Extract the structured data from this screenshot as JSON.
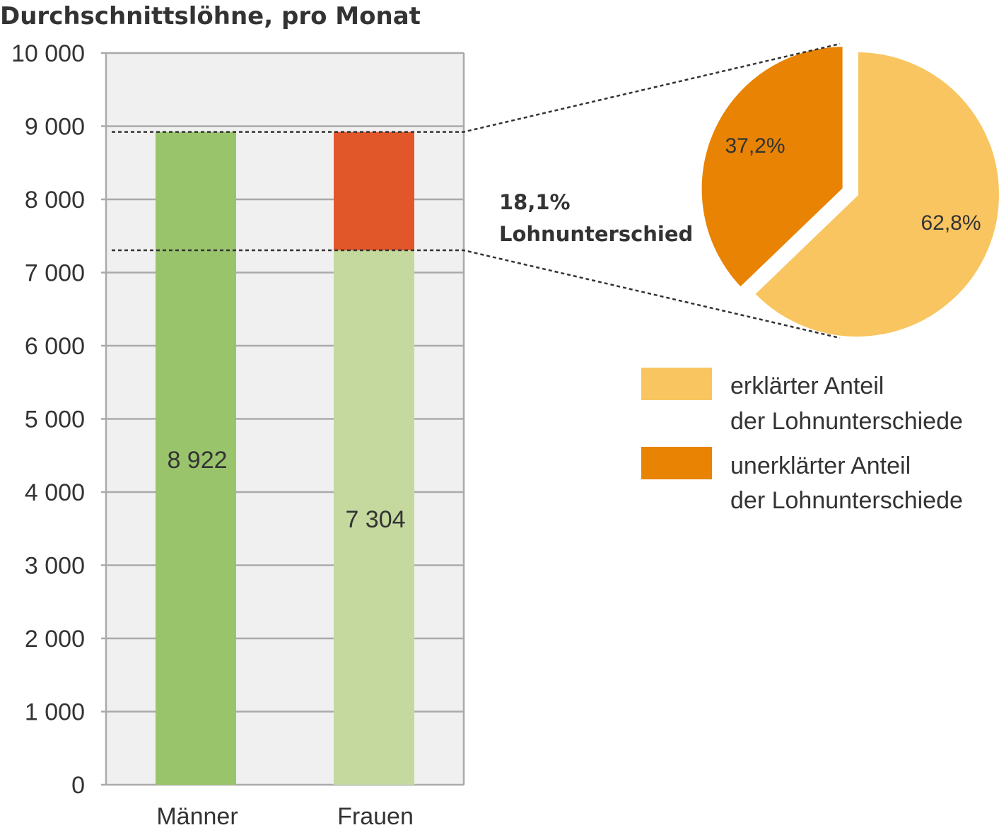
{
  "chart_data": [
    {
      "type": "bar",
      "title": "Durchschnittslöhne, pro Monat",
      "categories": [
        "Männer",
        "Frauen"
      ],
      "values": [
        8922,
        7304
      ],
      "value_labels": [
        "8 922",
        "7 304"
      ],
      "gap_segment": {
        "category": "Frauen",
        "from": 7304,
        "to": 8922
      },
      "ylim": [
        0,
        10000
      ],
      "yticks": [
        0,
        1000,
        2000,
        3000,
        4000,
        5000,
        6000,
        7000,
        8000,
        9000,
        10000
      ],
      "ytick_labels": [
        "0",
        "1 000",
        "2 000",
        "3 000",
        "4 000",
        "5 000",
        "6 000",
        "7 000",
        "8 000",
        "9 000",
        "10 000"
      ],
      "grid": true,
      "colors": {
        "Männer": "#9ac46c",
        "Frauen": "#c5d99e",
        "gap": "#e2572a",
        "plot_bg": "#f0f0f0",
        "grid": "#aaaaaa"
      }
    },
    {
      "type": "pie",
      "slices": [
        {
          "name": "erklärter Anteil der Lohnunterschiede",
          "value": 62.8,
          "label": "62,8%",
          "color": "#f9c560"
        },
        {
          "name": "unerklärter Anteil der Lohnunterschiede",
          "value": 37.2,
          "label": "37,2%",
          "color": "#e88304",
          "exploded": true
        }
      ],
      "gap_annotation": [
        "18,1%",
        "Lohnunterschied"
      ],
      "legend": [
        {
          "lines": [
            "erklärter Anteil",
            "der Lohnunterschiede"
          ],
          "color": "#f9c560"
        },
        {
          "lines": [
            "unerklärter Anteil",
            "der Lohnunterschiede"
          ],
          "color": "#e88304"
        }
      ],
      "legend_position": "bottom-right"
    }
  ]
}
